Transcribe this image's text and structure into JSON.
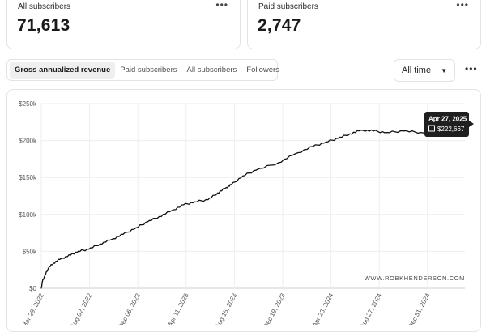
{
  "stats": {
    "all_subscribers": {
      "label": "All subscribers",
      "value": "71,613",
      "menu": "•••"
    },
    "paid_subscribers": {
      "label": "Paid subscribers",
      "value": "2,747",
      "menu": "•••"
    }
  },
  "tabs": [
    {
      "label": "Gross annualized revenue",
      "active": true
    },
    {
      "label": "Paid subscribers",
      "active": false
    },
    {
      "label": "All subscribers",
      "active": false
    },
    {
      "label": "Followers",
      "active": false
    }
  ],
  "range": {
    "selected": "All time",
    "caret": "▼"
  },
  "page_menu": "•••",
  "watermark": "WWW.ROBKHENDERSON.COM",
  "tooltip": {
    "date": "Apr 27, 2025",
    "value": "$222,667"
  },
  "chart_data": {
    "type": "line",
    "title": "",
    "xlabel": "",
    "ylabel": "",
    "ylim": [
      0,
      250000
    ],
    "y_ticks": [
      {
        "value": 0,
        "label": "$0"
      },
      {
        "value": 50000,
        "label": "$50k"
      },
      {
        "value": 100000,
        "label": "$100k"
      },
      {
        "value": 150000,
        "label": "$150k"
      },
      {
        "value": 200000,
        "label": "$200k"
      },
      {
        "value": 250000,
        "label": "$250k"
      }
    ],
    "x_ticks": [
      "Mar 29, 2022",
      "Aug 02, 2022",
      "Dec 06, 2022",
      "Apr 11, 2023",
      "Aug 15, 2023",
      "Dec 19, 2023",
      "Apr 23, 2024",
      "Aug 27, 2024",
      "Dec 31, 2024"
    ],
    "x_start": "2022-03-29",
    "x_end": "2025-04-27",
    "grid": true,
    "series": [
      {
        "color": "#111111",
        "points": [
          [
            "2022-03-29",
            0
          ],
          [
            "2022-04-01",
            9000
          ],
          [
            "2022-04-08",
            18000
          ],
          [
            "2022-04-18",
            28000
          ],
          [
            "2022-04-30",
            34000
          ],
          [
            "2022-05-20",
            40000
          ],
          [
            "2022-06-15",
            45000
          ],
          [
            "2022-07-05",
            50000
          ],
          [
            "2022-08-02",
            53000
          ],
          [
            "2022-09-01",
            60000
          ],
          [
            "2022-10-01",
            66000
          ],
          [
            "2022-11-01",
            73000
          ],
          [
            "2022-12-06",
            82000
          ],
          [
            "2023-01-05",
            90000
          ],
          [
            "2023-02-05",
            97000
          ],
          [
            "2023-03-10",
            105000
          ],
          [
            "2023-04-11",
            113000
          ],
          [
            "2023-05-10",
            117000
          ],
          [
            "2023-06-15",
            120000
          ],
          [
            "2023-07-10",
            129000
          ],
          [
            "2023-08-01",
            136000
          ],
          [
            "2023-08-15",
            140000
          ],
          [
            "2023-09-15",
            152000
          ],
          [
            "2023-10-20",
            160000
          ],
          [
            "2023-12-19",
            170000
          ],
          [
            "2024-02-01",
            182000
          ],
          [
            "2024-03-20",
            192000
          ],
          [
            "2024-04-23",
            198000
          ],
          [
            "2024-05-25",
            203000
          ],
          [
            "2024-06-25",
            209000
          ],
          [
            "2024-07-25",
            214000
          ],
          [
            "2024-08-27",
            213000
          ],
          [
            "2024-10-01",
            211000
          ],
          [
            "2024-11-15",
            213000
          ],
          [
            "2024-12-31",
            211000
          ],
          [
            "2025-02-15",
            214000
          ],
          [
            "2025-03-20",
            213000
          ],
          [
            "2025-04-27",
            222667
          ]
        ]
      }
    ]
  }
}
